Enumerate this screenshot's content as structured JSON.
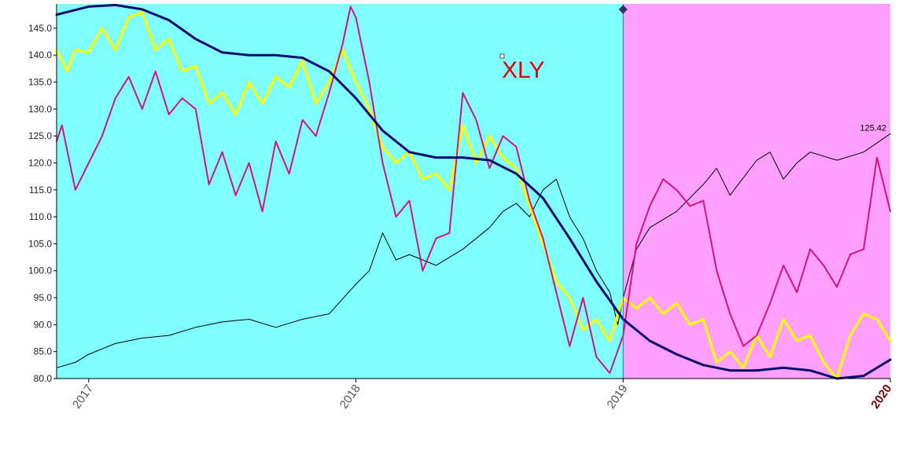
{
  "chart_data": {
    "type": "line",
    "title": "XLY",
    "xlabel": "",
    "ylabel": "",
    "x_range": [
      2016.88,
      2020.0
    ],
    "ylim": [
      80,
      149.5
    ],
    "y_ticks": [
      "80.0",
      "85.0",
      "90.0",
      "95.0",
      "100.0",
      "105.0",
      "110.0",
      "115.0",
      "120.0",
      "125.0",
      "130.0",
      "135.0",
      "140.0",
      "145.0"
    ],
    "x_ticks": [
      {
        "year": 2017,
        "label": "2017"
      },
      {
        "year": 2018,
        "label": "2018"
      },
      {
        "year": 2019,
        "label": "2019"
      },
      {
        "year": 2020,
        "label": "2020"
      }
    ],
    "grid": false,
    "last_price_label": "125.42",
    "regions": [
      {
        "from": 2016.88,
        "to": 2019.0,
        "color": "#80ffff"
      },
      {
        "from": 2019.0,
        "to": 2020.0,
        "color": "#ffa0ff"
      }
    ],
    "colors": {
      "price": "#000000",
      "smooth_cycle": "#0a0a6e",
      "yellow_oscillator": "#ffff00",
      "magenta_oscillator": "#d4147a",
      "divider": "#337799",
      "marker": "#333366"
    },
    "series": [
      {
        "key": "price",
        "x": [
          2016.88,
          2016.95,
          2017.0,
          2017.1,
          2017.2,
          2017.3,
          2017.4,
          2017.5,
          2017.6,
          2017.7,
          2017.8,
          2017.9,
          2018.0,
          2018.05,
          2018.1,
          2018.15,
          2018.2,
          2018.3,
          2018.4,
          2018.5,
          2018.55,
          2018.6,
          2018.65,
          2018.7,
          2018.75,
          2018.8,
          2018.85,
          2018.9,
          2018.95,
          2018.98,
          2019.0,
          2019.05,
          2019.1,
          2019.2,
          2019.3,
          2019.35,
          2019.4,
          2019.5,
          2019.55,
          2019.6,
          2019.65,
          2019.7,
          2019.8,
          2019.9,
          2020.0
        ],
        "values": [
          82.0,
          83.0,
          84.5,
          86.5,
          87.5,
          88.0,
          89.5,
          90.5,
          91.0,
          89.5,
          91.0,
          92.0,
          97.5,
          100.0,
          107.0,
          102.0,
          103.0,
          101.0,
          104.0,
          108.0,
          111.0,
          112.5,
          110.0,
          115.0,
          117.0,
          110.0,
          106.0,
          100.0,
          96.0,
          90.0,
          95.0,
          104.0,
          108.0,
          111.0,
          116.0,
          119.0,
          114.0,
          120.5,
          122.0,
          117.0,
          120.0,
          122.0,
          120.5,
          122.0,
          125.42
        ]
      },
      {
        "key": "smooth_cycle",
        "x": [
          2016.88,
          2017.0,
          2017.1,
          2017.2,
          2017.3,
          2017.4,
          2017.5,
          2017.6,
          2017.7,
          2017.8,
          2017.9,
          2018.0,
          2018.1,
          2018.2,
          2018.3,
          2018.4,
          2018.5,
          2018.6,
          2018.7,
          2018.8,
          2018.9,
          2019.0,
          2019.1,
          2019.2,
          2019.3,
          2019.4,
          2019.5,
          2019.6,
          2019.7,
          2019.8,
          2019.9,
          2020.0
        ],
        "values": [
          147.5,
          149.0,
          149.3,
          148.5,
          146.5,
          143.0,
          140.5,
          140.0,
          140.0,
          139.5,
          137.0,
          132.0,
          126.0,
          122.0,
          121.0,
          121.0,
          120.5,
          118.0,
          113.5,
          106.0,
          98.0,
          91.0,
          87.0,
          84.5,
          82.5,
          81.5,
          81.5,
          82.0,
          81.5,
          80.0,
          80.5,
          83.5
        ]
      },
      {
        "key": "yellow_oscillator",
        "x": [
          2016.88,
          2016.92,
          2016.95,
          2017.0,
          2017.05,
          2017.1,
          2017.15,
          2017.2,
          2017.25,
          2017.3,
          2017.35,
          2017.4,
          2017.45,
          2017.5,
          2017.55,
          2017.6,
          2017.65,
          2017.7,
          2017.75,
          2017.8,
          2017.85,
          2017.9,
          2017.95,
          2018.0,
          2018.05,
          2018.1,
          2018.15,
          2018.2,
          2018.25,
          2018.3,
          2018.35,
          2018.4,
          2018.45,
          2018.5,
          2018.55,
          2018.6,
          2018.65,
          2018.7,
          2018.75,
          2018.8,
          2018.85,
          2018.9,
          2018.95,
          2019.0,
          2019.05,
          2019.1,
          2019.15,
          2019.2,
          2019.25,
          2019.3,
          2019.35,
          2019.4,
          2019.45,
          2019.5,
          2019.55,
          2019.6,
          2019.65,
          2019.7,
          2019.75,
          2019.8,
          2019.85,
          2019.9,
          2019.95,
          2020.0
        ],
        "values": [
          141.0,
          137.0,
          141.0,
          140.5,
          145.0,
          141.0,
          147.0,
          148.0,
          141.0,
          143.0,
          137.0,
          138.0,
          131.0,
          133.0,
          129.0,
          135.0,
          131.0,
          136.0,
          134.0,
          139.0,
          131.0,
          135.0,
          141.0,
          135.0,
          130.0,
          123.0,
          120.0,
          122.0,
          117.0,
          118.0,
          115.0,
          127.0,
          120.0,
          125.0,
          121.0,
          119.0,
          112.0,
          105.0,
          98.0,
          95.0,
          89.0,
          91.0,
          87.0,
          95.0,
          93.0,
          95.0,
          92.0,
          94.0,
          90.0,
          91.0,
          83.0,
          85.0,
          82.0,
          88.0,
          84.0,
          91.0,
          87.0,
          88.0,
          83.0,
          80.0,
          88.0,
          92.0,
          91.0,
          87.0
        ]
      },
      {
        "key": "magenta_oscillator",
        "x": [
          2016.88,
          2016.9,
          2016.95,
          2017.0,
          2017.05,
          2017.1,
          2017.15,
          2017.2,
          2017.25,
          2017.3,
          2017.35,
          2017.4,
          2017.45,
          2017.5,
          2017.55,
          2017.6,
          2017.65,
          2017.7,
          2017.75,
          2017.8,
          2017.85,
          2017.9,
          2017.95,
          2017.98,
          2018.0,
          2018.05,
          2018.1,
          2018.15,
          2018.2,
          2018.25,
          2018.3,
          2018.35,
          2018.4,
          2018.45,
          2018.5,
          2018.55,
          2018.6,
          2018.65,
          2018.7,
          2018.75,
          2018.8,
          2018.85,
          2018.9,
          2018.95,
          2019.0,
          2019.05,
          2019.1,
          2019.15,
          2019.2,
          2019.25,
          2019.3,
          2019.35,
          2019.4,
          2019.45,
          2019.5,
          2019.55,
          2019.6,
          2019.65,
          2019.7,
          2019.75,
          2019.8,
          2019.85,
          2019.9,
          2019.95,
          2020.0
        ],
        "values": [
          124.0,
          127.0,
          115.0,
          120.0,
          125.0,
          132.0,
          136.0,
          130.0,
          137.0,
          129.0,
          132.0,
          130.0,
          116.0,
          122.0,
          114.0,
          120.0,
          111.0,
          124.0,
          118.0,
          128.0,
          125.0,
          133.0,
          142.0,
          149.0,
          147.0,
          135.0,
          120.0,
          110.0,
          113.0,
          100.0,
          106.0,
          107.0,
          133.0,
          128.0,
          119.0,
          125.0,
          123.0,
          113.0,
          106.0,
          96.0,
          86.0,
          95.0,
          84.0,
          81.0,
          88.0,
          105.0,
          112.0,
          117.0,
          115.0,
          112.0,
          113.0,
          100.0,
          92.0,
          86.0,
          88.0,
          94.0,
          101.0,
          96.0,
          104.0,
          101.0,
          97.0,
          103.0,
          104.0,
          121.0,
          111.0
        ]
      }
    ]
  }
}
